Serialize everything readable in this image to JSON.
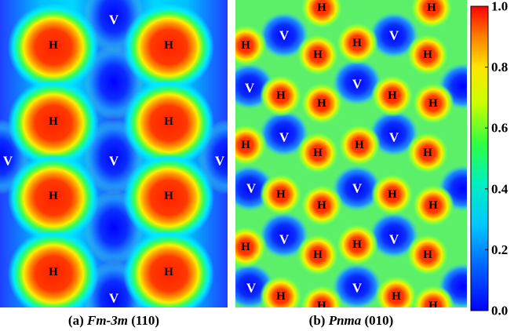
{
  "panel_a": {
    "label_prefix": "(a)",
    "space_group": "Fm-3m",
    "plane": "(110)",
    "h_label": "H",
    "v_label": "V",
    "h_sites": [
      {
        "col": 0,
        "row": 0
      },
      {
        "col": 1,
        "row": 0
      },
      {
        "col": 0,
        "row": 1
      },
      {
        "col": 1,
        "row": 1
      },
      {
        "col": 0,
        "row": 2
      },
      {
        "col": 1,
        "row": 2
      },
      {
        "col": 0,
        "row": 3
      },
      {
        "col": 1,
        "row": 3
      }
    ]
  },
  "panel_b": {
    "label_prefix": "(b)",
    "space_group": "Pnma",
    "plane": "(010)",
    "h_label": "H",
    "v_label": "V"
  },
  "colorbar": {
    "ticks": [
      "1.0",
      "0.8",
      "0.6",
      "0.4",
      "0.2",
      "0.0"
    ],
    "range": [
      0.0,
      1.0
    ],
    "colors": [
      "#0000ff",
      "#0080ff",
      "#00e5ff",
      "#00ff80",
      "#c8ff00",
      "#ffff00",
      "#ff8000",
      "#ff0000"
    ]
  },
  "colors": {
    "background_low": "#1f3fff",
    "background_mid": "#00e5ff",
    "hydrogen_core": "#ff2000",
    "ring_green": "#3cff50",
    "ring_yellow": "#ffee00"
  }
}
